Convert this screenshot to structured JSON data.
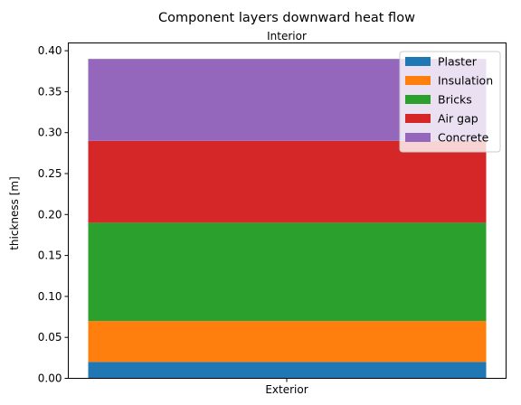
{
  "chart_data": {
    "type": "bar",
    "stacked": true,
    "title": "Component layers downward heat flow",
    "top_label": "Interior",
    "xlabel": "",
    "ylabel": "thickness [m]",
    "categories": [
      "Exterior"
    ],
    "ylim": [
      0,
      0.4095
    ],
    "yticks": [
      "0.00",
      "0.05",
      "0.10",
      "0.15",
      "0.20",
      "0.25",
      "0.30",
      "0.35",
      "0.40"
    ],
    "legend_position": "top-right",
    "grid": false,
    "series": [
      {
        "name": "Plaster",
        "values": [
          0.02
        ],
        "color": "#1f77b4"
      },
      {
        "name": "Insulation",
        "values": [
          0.05
        ],
        "color": "#ff7f0e"
      },
      {
        "name": "Bricks",
        "values": [
          0.12
        ],
        "color": "#2ca02c"
      },
      {
        "name": "Air gap",
        "values": [
          0.1
        ],
        "color": "#d62728"
      },
      {
        "name": "Concrete",
        "values": [
          0.1
        ],
        "color": "#9467bd"
      }
    ]
  }
}
